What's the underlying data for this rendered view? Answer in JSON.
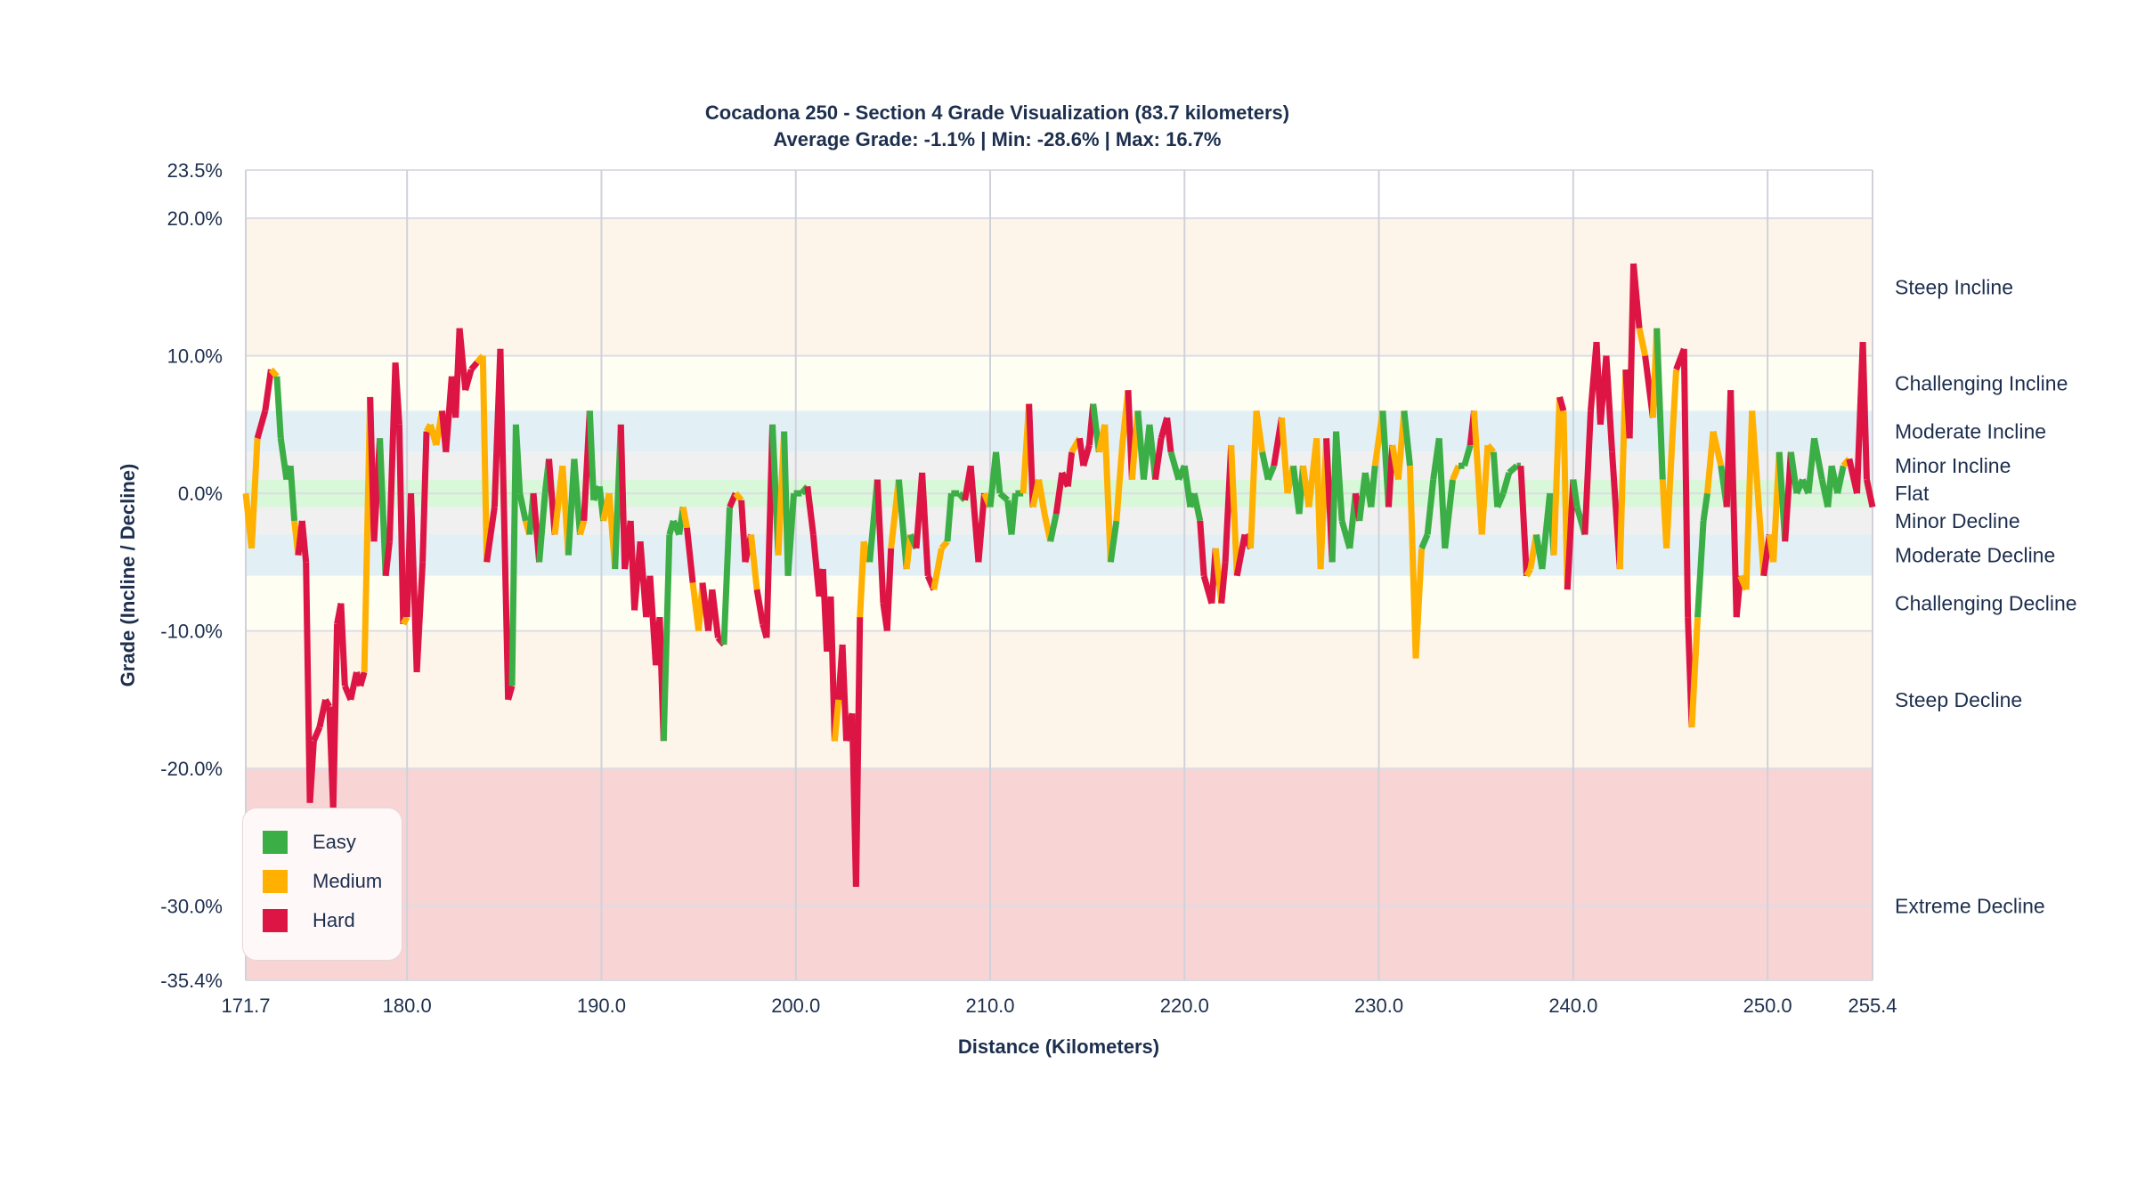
{
  "chart_data": {
    "type": "line",
    "title": "Cocadona 250 - Section 4 Grade Visualization (83.7 kilometers)",
    "subtitle": "Average Grade: -1.1% | Min: -28.6% | Max: 16.7%",
    "xlabel": "Distance (Kilometers)",
    "ylabel": "Grade (Incline / Decline)",
    "xlim": [
      171.7,
      255.4
    ],
    "ylim": [
      -35.4,
      23.5
    ],
    "x_ticks": [
      "171.7",
      "180.0",
      "190.0",
      "200.0",
      "210.0",
      "220.0",
      "230.0",
      "240.0",
      "250.0",
      "255.4"
    ],
    "x_tick_values": [
      171.7,
      180,
      190,
      200,
      210,
      220,
      230,
      240,
      250,
      255.4
    ],
    "y_ticks": [
      "23.5%",
      "20.0%",
      "10.0%",
      "0.0%",
      "-10.0%",
      "-20.0%",
      "-30.0%",
      "-35.4%"
    ],
    "y_tick_values": [
      23.5,
      20,
      10,
      0,
      -10,
      -20,
      -30,
      -35.4
    ],
    "grid": true,
    "legend_position": "bottom-left",
    "legend": [
      {
        "key": "E",
        "label": "Easy",
        "color": "#3cae46"
      },
      {
        "key": "M",
        "label": "Medium",
        "color": "#ffb000"
      },
      {
        "key": "H",
        "label": "Hard",
        "color": "#dc1545"
      }
    ],
    "bands": [
      {
        "label": "Steep Incline",
        "from": 10,
        "to": 20,
        "label_at": 15,
        "color": "#fdf5ea"
      },
      {
        "label": "Challenging Incline",
        "from": 6,
        "to": 10,
        "label_at": 8,
        "color": "#fffef3"
      },
      {
        "label": "Moderate Incline",
        "from": 3,
        "to": 6,
        "label_at": 4.5,
        "color": "#e2f0f6"
      },
      {
        "label": "Minor Incline",
        "from": 1,
        "to": 3,
        "label_at": 2,
        "color": "#f0f0f0"
      },
      {
        "label": "Flat",
        "from": -1,
        "to": 1,
        "label_at": 0,
        "color": "#d9f7d9"
      },
      {
        "label": "Minor Decline",
        "from": -3,
        "to": -1,
        "label_at": -2,
        "color": "#f0f0f0"
      },
      {
        "label": "Moderate Decline",
        "from": -6,
        "to": -3,
        "label_at": -4.5,
        "color": "#e2f0f6"
      },
      {
        "label": "Challenging Decline",
        "from": -10,
        "to": -6,
        "label_at": -8,
        "color": "#fffef3"
      },
      {
        "label": "Steep Decline",
        "from": -20,
        "to": -10,
        "label_at": -15,
        "color": "#fdf5ea"
      },
      {
        "label": "Extreme Decline",
        "from": -35.4,
        "to": -20,
        "label_at": -30,
        "color": "#f8d4d4"
      }
    ],
    "points": [
      [
        171.7,
        0,
        "E"
      ],
      [
        172.0,
        -4,
        "M"
      ],
      [
        172.3,
        4,
        "M"
      ],
      [
        172.7,
        6,
        "H"
      ],
      [
        173.0,
        9,
        "H"
      ],
      [
        173.3,
        8.5,
        "M"
      ],
      [
        173.5,
        4,
        "E"
      ],
      [
        173.8,
        1,
        "E"
      ],
      [
        174.0,
        2,
        "E"
      ],
      [
        174.2,
        -2,
        "E"
      ],
      [
        174.4,
        -4.5,
        "M"
      ],
      [
        174.6,
        -2,
        "H"
      ],
      [
        174.8,
        -5,
        "H"
      ],
      [
        175.0,
        -22.5,
        "H"
      ],
      [
        175.2,
        -18,
        "H"
      ],
      [
        175.5,
        -17,
        "H"
      ],
      [
        175.8,
        -15,
        "H"
      ],
      [
        176.0,
        -15.5,
        "H"
      ],
      [
        176.2,
        -23,
        "H"
      ],
      [
        176.4,
        -9.5,
        "H"
      ],
      [
        176.6,
        -8,
        "H"
      ],
      [
        176.8,
        -14,
        "H"
      ],
      [
        177.1,
        -15,
        "H"
      ],
      [
        177.4,
        -13,
        "H"
      ],
      [
        177.6,
        -14,
        "H"
      ],
      [
        177.8,
        -13,
        "H"
      ],
      [
        178.1,
        7,
        "M"
      ],
      [
        178.3,
        -3.5,
        "H"
      ],
      [
        178.6,
        4,
        "H"
      ],
      [
        178.9,
        -6,
        "E"
      ],
      [
        179.1,
        -3.5,
        "H"
      ],
      [
        179.4,
        9.5,
        "H"
      ],
      [
        179.6,
        5,
        "H"
      ],
      [
        179.8,
        -9.5,
        "H"
      ],
      [
        180.0,
        -9,
        "M"
      ],
      [
        180.2,
        0,
        "H"
      ],
      [
        180.5,
        -13,
        "H"
      ],
      [
        180.8,
        -5,
        "H"
      ],
      [
        181.0,
        4.5,
        "H"
      ],
      [
        181.2,
        5,
        "M"
      ],
      [
        181.5,
        3.5,
        "M"
      ],
      [
        181.8,
        6,
        "M"
      ],
      [
        182.0,
        3,
        "H"
      ],
      [
        182.3,
        8.5,
        "H"
      ],
      [
        182.5,
        5.5,
        "H"
      ],
      [
        182.7,
        12,
        "H"
      ],
      [
        183.0,
        7.5,
        "H"
      ],
      [
        183.3,
        9,
        "H"
      ],
      [
        183.6,
        9.5,
        "H"
      ],
      [
        183.9,
        10,
        "M"
      ],
      [
        184.1,
        -5,
        "M"
      ],
      [
        184.5,
        -1,
        "H"
      ],
      [
        184.8,
        10.5,
        "H"
      ],
      [
        185.2,
        -15,
        "H"
      ],
      [
        185.4,
        -14,
        "H"
      ],
      [
        185.6,
        5,
        "E"
      ],
      [
        185.8,
        0,
        "E"
      ],
      [
        186.1,
        -2,
        "E"
      ],
      [
        186.3,
        -3,
        "M"
      ],
      [
        186.5,
        0,
        "E"
      ],
      [
        186.8,
        -5,
        "H"
      ],
      [
        187.1,
        0,
        "E"
      ],
      [
        187.3,
        2.5,
        "E"
      ],
      [
        187.6,
        -3,
        "H"
      ],
      [
        188.0,
        2,
        "M"
      ],
      [
        188.3,
        -4.5,
        "M"
      ],
      [
        188.6,
        2.5,
        "E"
      ],
      [
        188.9,
        -3,
        "E"
      ],
      [
        189.1,
        -2,
        "M"
      ],
      [
        189.4,
        6,
        "H"
      ],
      [
        189.6,
        -0.5,
        "E"
      ],
      [
        189.9,
        0.5,
        "E"
      ],
      [
        190.1,
        -2,
        "E"
      ],
      [
        190.4,
        0,
        "M"
      ],
      [
        190.7,
        -5.5,
        "M"
      ],
      [
        191.0,
        5,
        "E"
      ],
      [
        191.2,
        -5.5,
        "H"
      ],
      [
        191.5,
        -2,
        "H"
      ],
      [
        191.7,
        -8.5,
        "H"
      ],
      [
        192.0,
        -3.5,
        "H"
      ],
      [
        192.3,
        -9,
        "H"
      ],
      [
        192.5,
        -6,
        "H"
      ],
      [
        192.8,
        -12.5,
        "H"
      ],
      [
        193.0,
        -9,
        "H"
      ],
      [
        193.2,
        -18,
        "H"
      ],
      [
        193.5,
        -3,
        "E"
      ],
      [
        193.7,
        -2,
        "E"
      ],
      [
        194.0,
        -3,
        "E"
      ],
      [
        194.2,
        -1,
        "E"
      ],
      [
        194.4,
        -2.5,
        "M"
      ],
      [
        194.7,
        -6.5,
        "H"
      ],
      [
        195.0,
        -10,
        "M"
      ],
      [
        195.2,
        -6.5,
        "M"
      ],
      [
        195.5,
        -10,
        "H"
      ],
      [
        195.7,
        -7,
        "H"
      ],
      [
        196.0,
        -10.5,
        "H"
      ],
      [
        196.3,
        -11,
        "H"
      ],
      [
        196.6,
        -1,
        "E"
      ],
      [
        196.9,
        0,
        "H"
      ],
      [
        197.2,
        -0.5,
        "M"
      ],
      [
        197.4,
        -5,
        "H"
      ],
      [
        197.7,
        -3,
        "H"
      ],
      [
        198.0,
        -7,
        "M"
      ],
      [
        198.3,
        -9.5,
        "H"
      ],
      [
        198.5,
        -10.5,
        "H"
      ],
      [
        198.8,
        5,
        "H"
      ],
      [
        199.1,
        -4.5,
        "E"
      ],
      [
        199.4,
        4.5,
        "M"
      ],
      [
        199.6,
        -6,
        "E"
      ],
      [
        199.9,
        0,
        "E"
      ],
      [
        200.3,
        0,
        "E"
      ],
      [
        200.6,
        0.5,
        "E"
      ],
      [
        200.9,
        -3,
        "H"
      ],
      [
        201.2,
        -7.5,
        "H"
      ],
      [
        201.4,
        -5.5,
        "H"
      ],
      [
        201.6,
        -11.5,
        "H"
      ],
      [
        201.8,
        -7.5,
        "H"
      ],
      [
        202.0,
        -18,
        "H"
      ],
      [
        202.2,
        -15,
        "M"
      ],
      [
        202.4,
        -11,
        "H"
      ],
      [
        202.6,
        -18,
        "H"
      ],
      [
        202.9,
        -16,
        "H"
      ],
      [
        203.1,
        -28.6,
        "H"
      ],
      [
        203.3,
        -9,
        "H"
      ],
      [
        203.5,
        -3.5,
        "M"
      ],
      [
        203.8,
        -5,
        "M"
      ],
      [
        204.2,
        1,
        "E"
      ],
      [
        204.5,
        -8,
        "H"
      ],
      [
        204.7,
        -10,
        "H"
      ],
      [
        204.9,
        -4,
        "H"
      ],
      [
        205.3,
        1,
        "M"
      ],
      [
        205.7,
        -5.5,
        "E"
      ],
      [
        205.9,
        -3,
        "M"
      ],
      [
        206.2,
        -4,
        "E"
      ],
      [
        206.5,
        1.5,
        "H"
      ],
      [
        206.8,
        -6,
        "H"
      ],
      [
        207.1,
        -7,
        "H"
      ],
      [
        207.5,
        -4,
        "M"
      ],
      [
        207.8,
        -3.5,
        "M"
      ],
      [
        208.0,
        0,
        "E"
      ],
      [
        208.4,
        0,
        "E"
      ],
      [
        208.7,
        -0.5,
        "E"
      ],
      [
        209.0,
        2,
        "H"
      ],
      [
        209.4,
        -5,
        "H"
      ],
      [
        209.7,
        0,
        "H"
      ],
      [
        210.0,
        -1,
        "M"
      ],
      [
        210.3,
        3,
        "E"
      ],
      [
        210.5,
        0,
        "E"
      ],
      [
        210.9,
        -0.5,
        "E"
      ],
      [
        211.1,
        -3,
        "E"
      ],
      [
        211.3,
        0,
        "E"
      ],
      [
        211.7,
        0,
        "E"
      ],
      [
        212.0,
        6.5,
        "M"
      ],
      [
        212.2,
        -1,
        "H"
      ],
      [
        212.5,
        1,
        "M"
      ],
      [
        212.8,
        -1.5,
        "M"
      ],
      [
        213.1,
        -3.5,
        "M"
      ],
      [
        213.4,
        -1.5,
        "E"
      ],
      [
        213.7,
        1.5,
        "H"
      ],
      [
        214.0,
        0.5,
        "H"
      ],
      [
        214.2,
        3,
        "H"
      ],
      [
        214.6,
        4,
        "M"
      ],
      [
        214.8,
        2,
        "H"
      ],
      [
        215.1,
        3.5,
        "H"
      ],
      [
        215.3,
        6.5,
        "H"
      ],
      [
        215.6,
        3,
        "E"
      ],
      [
        215.9,
        5,
        "M"
      ],
      [
        216.2,
        -5,
        "M"
      ],
      [
        216.5,
        -2,
        "E"
      ],
      [
        216.8,
        3.5,
        "M"
      ],
      [
        217.1,
        7.5,
        "M"
      ],
      [
        217.3,
        1,
        "H"
      ],
      [
        217.6,
        6,
        "M"
      ],
      [
        217.9,
        1,
        "E"
      ],
      [
        218.2,
        5,
        "E"
      ],
      [
        218.5,
        1,
        "E"
      ],
      [
        218.8,
        4,
        "H"
      ],
      [
        219.1,
        5.5,
        "H"
      ],
      [
        219.3,
        3,
        "H"
      ],
      [
        219.7,
        1,
        "E"
      ],
      [
        220.0,
        2,
        "E"
      ],
      [
        220.3,
        -1,
        "E"
      ],
      [
        220.5,
        0,
        "E"
      ],
      [
        220.8,
        -2,
        "E"
      ],
      [
        221.0,
        -6,
        "H"
      ],
      [
        221.4,
        -8,
        "H"
      ],
      [
        221.6,
        -4,
        "H"
      ],
      [
        221.9,
        -8,
        "M"
      ],
      [
        222.1,
        -5,
        "H"
      ],
      [
        222.4,
        3.5,
        "H"
      ],
      [
        222.7,
        -6,
        "M"
      ],
      [
        223.1,
        -3,
        "H"
      ],
      [
        223.4,
        -4,
        "H"
      ],
      [
        223.7,
        6,
        "M"
      ],
      [
        224.0,
        3,
        "M"
      ],
      [
        224.3,
        1,
        "E"
      ],
      [
        224.6,
        2,
        "E"
      ],
      [
        225.0,
        5.5,
        "H"
      ],
      [
        225.3,
        0,
        "M"
      ],
      [
        225.6,
        2,
        "M"
      ],
      [
        225.9,
        -1.5,
        "E"
      ],
      [
        226.1,
        2,
        "E"
      ],
      [
        226.4,
        -1,
        "M"
      ],
      [
        226.8,
        4,
        "M"
      ],
      [
        227.0,
        -5.5,
        "M"
      ],
      [
        227.3,
        4,
        "M"
      ],
      [
        227.6,
        -5,
        "H"
      ],
      [
        227.8,
        4.5,
        "E"
      ],
      [
        228.1,
        -2,
        "E"
      ],
      [
        228.5,
        -4,
        "E"
      ],
      [
        228.8,
        0,
        "E"
      ],
      [
        229.0,
        -2,
        "H"
      ],
      [
        229.3,
        1.5,
        "E"
      ],
      [
        229.6,
        -1,
        "E"
      ],
      [
        229.8,
        2,
        "E"
      ],
      [
        230.2,
        6,
        "M"
      ],
      [
        230.5,
        -1,
        "E"
      ],
      [
        230.7,
        3.5,
        "H"
      ],
      [
        231.0,
        1,
        "M"
      ],
      [
        231.3,
        6,
        "M"
      ],
      [
        231.6,
        2,
        "E"
      ],
      [
        231.9,
        -12,
        "M"
      ],
      [
        232.2,
        -4,
        "M"
      ],
      [
        232.5,
        -3,
        "E"
      ],
      [
        232.8,
        1,
        "E"
      ],
      [
        233.1,
        4,
        "E"
      ],
      [
        233.4,
        -4,
        "E"
      ],
      [
        233.8,
        1,
        "E"
      ],
      [
        234.1,
        2,
        "M"
      ],
      [
        234.4,
        2,
        "E"
      ],
      [
        234.7,
        3.5,
        "E"
      ],
      [
        234.9,
        6,
        "H"
      ],
      [
        235.3,
        -3,
        "M"
      ],
      [
        235.6,
        3.5,
        "M"
      ],
      [
        235.9,
        3,
        "M"
      ],
      [
        236.1,
        -1,
        "E"
      ],
      [
        236.4,
        0,
        "E"
      ],
      [
        236.7,
        1.5,
        "E"
      ],
      [
        237.1,
        2,
        "E"
      ],
      [
        237.3,
        2,
        "E"
      ],
      [
        237.6,
        -6,
        "H"
      ],
      [
        237.8,
        -5.5,
        "M"
      ],
      [
        238.1,
        -3,
        "M"
      ],
      [
        238.4,
        -5.5,
        "E"
      ],
      [
        238.8,
        0,
        "E"
      ],
      [
        239.0,
        -4.5,
        "E"
      ],
      [
        239.3,
        7,
        "M"
      ],
      [
        239.5,
        6,
        "H"
      ],
      [
        239.7,
        -7,
        "M"
      ],
      [
        240.0,
        1,
        "H"
      ],
      [
        240.2,
        -1,
        "E"
      ],
      [
        240.6,
        -3,
        "E"
      ],
      [
        240.9,
        6,
        "H"
      ],
      [
        241.2,
        11,
        "H"
      ],
      [
        241.4,
        5,
        "H"
      ],
      [
        241.7,
        10,
        "H"
      ],
      [
        242.0,
        3,
        "H"
      ],
      [
        242.4,
        -5.5,
        "H"
      ],
      [
        242.7,
        9,
        "M"
      ],
      [
        242.9,
        4,
        "H"
      ],
      [
        243.1,
        16.7,
        "H"
      ],
      [
        243.4,
        12,
        "H"
      ],
      [
        243.7,
        10,
        "M"
      ],
      [
        244.1,
        5.5,
        "H"
      ],
      [
        244.3,
        12,
        "M"
      ],
      [
        244.6,
        1,
        "E"
      ],
      [
        244.8,
        -4,
        "M"
      ],
      [
        245.1,
        4,
        "M"
      ],
      [
        245.3,
        9,
        "M"
      ],
      [
        245.7,
        10.5,
        "H"
      ],
      [
        245.9,
        -9,
        "H"
      ],
      [
        246.1,
        -17,
        "H"
      ],
      [
        246.4,
        -9,
        "M"
      ],
      [
        246.7,
        -2,
        "E"
      ],
      [
        246.9,
        0,
        "E"
      ],
      [
        247.2,
        4.5,
        "M"
      ],
      [
        247.6,
        2,
        "M"
      ],
      [
        247.9,
        -1,
        "E"
      ],
      [
        248.1,
        7.5,
        "H"
      ],
      [
        248.4,
        -9,
        "H"
      ],
      [
        248.6,
        -6,
        "H"
      ],
      [
        248.9,
        -7,
        "M"
      ],
      [
        249.2,
        6,
        "M"
      ],
      [
        249.5,
        0,
        "M"
      ],
      [
        249.8,
        -6,
        "M"
      ],
      [
        250.1,
        -3,
        "H"
      ],
      [
        250.3,
        -5,
        "M"
      ],
      [
        250.6,
        3,
        "M"
      ],
      [
        250.9,
        -3.5,
        "E"
      ],
      [
        251.2,
        3,
        "H"
      ],
      [
        251.5,
        0,
        "E"
      ],
      [
        251.8,
        1,
        "E"
      ],
      [
        252.1,
        0,
        "E"
      ],
      [
        252.4,
        4,
        "E"
      ],
      [
        252.8,
        1,
        "E"
      ],
      [
        253.1,
        -1,
        "E"
      ],
      [
        253.3,
        2,
        "E"
      ],
      [
        253.6,
        0,
        "E"
      ],
      [
        253.9,
        2,
        "E"
      ],
      [
        254.2,
        2.5,
        "M"
      ],
      [
        254.6,
        0,
        "H"
      ],
      [
        254.9,
        11,
        "H"
      ],
      [
        255.1,
        1,
        "H"
      ],
      [
        255.4,
        -1,
        "H"
      ]
    ]
  }
}
